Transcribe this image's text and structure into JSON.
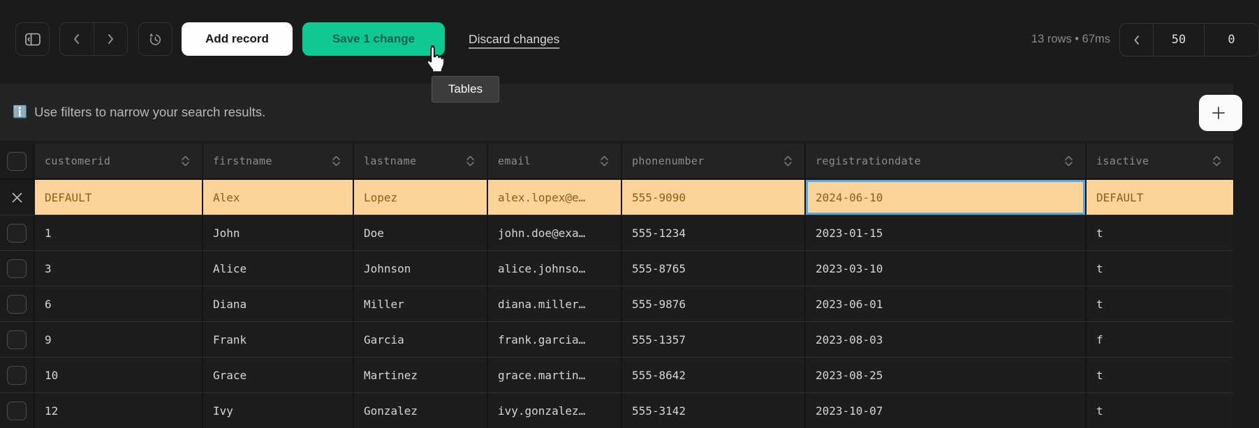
{
  "toolbar": {
    "add_record": "Add record",
    "save": "Save 1 change",
    "discard": "Discard changes",
    "stats": "13 rows • 67ms",
    "page_size": "50",
    "page_offset": "0"
  },
  "tooltip": {
    "label": "Tables"
  },
  "banner": {
    "icon": "ℹ️",
    "message": "Use filters to narrow your search results."
  },
  "icons": {
    "sidebar_toggle": "panel-left-icon",
    "back": "chevron-left-icon",
    "forward": "chevron-right-icon",
    "history": "history-clock-icon",
    "pager_prev": "chevron-left-icon",
    "add_filter": "plus-icon",
    "sort": "sort-chevrons-icon",
    "remove_pending_row": "close-x-icon",
    "cursor": "hand-pointer-cursor"
  },
  "colors": {
    "accent_green": "#0fc993",
    "row_highlight_bg": "#fbd39b",
    "row_highlight_text": "#8f5e16",
    "selected_cell_border": "#58a6dd",
    "banner_bg": "#242424",
    "cell_bg": "#1d1d1d",
    "header_bg": "#232323"
  },
  "table": {
    "columns": [
      "customerid",
      "firstname",
      "lastname",
      "email",
      "phonenumber",
      "registrationdate",
      "isactive"
    ],
    "pending_row": {
      "cells": [
        "DEFAULT",
        "Alex",
        "Lopez",
        "alex.lopex@e…",
        "555-9090",
        "2024-06-10",
        "DEFAULT"
      ],
      "selected_column": "registrationdate",
      "highlighted": true
    },
    "rows": [
      [
        "1",
        "John",
        "Doe",
        "john.doe@exa…",
        "555-1234",
        "2023-01-15",
        "t"
      ],
      [
        "3",
        "Alice",
        "Johnson",
        "alice.johnso…",
        "555-8765",
        "2023-03-10",
        "t"
      ],
      [
        "6",
        "Diana",
        "Miller",
        "diana.miller…",
        "555-9876",
        "2023-06-01",
        "t"
      ],
      [
        "9",
        "Frank",
        "Garcia",
        "frank.garcia…",
        "555-1357",
        "2023-08-03",
        "f"
      ],
      [
        "10",
        "Grace",
        "Martinez",
        "grace.martin…",
        "555-8642",
        "2023-08-25",
        "t"
      ],
      [
        "12",
        "Ivy",
        "Gonzalez",
        "ivy.gonzalez…",
        "555-3142",
        "2023-10-07",
        "t"
      ]
    ]
  }
}
